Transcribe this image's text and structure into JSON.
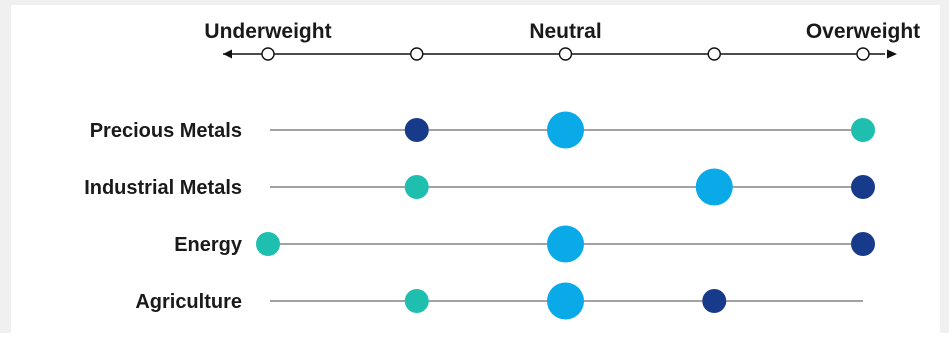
{
  "chart_data": {
    "type": "scatter",
    "title": "",
    "x_levels": [
      -2,
      -1,
      0,
      1,
      2
    ],
    "xlim": [
      -2,
      2
    ],
    "x_tick_labels": [
      {
        "x": -2,
        "label": "Underweight"
      },
      {
        "x": 0,
        "label": "Neutral"
      },
      {
        "x": 2,
        "label": "Overweight"
      }
    ],
    "categories": [
      "Precious Metals",
      "Industrial Metals",
      "Energy",
      "Agriculture"
    ],
    "rows": [
      {
        "label": "Precious Metals",
        "points": [
          {
            "x": -1,
            "kind": "dark"
          },
          {
            "x": 0,
            "kind": "large"
          },
          {
            "x": 2,
            "kind": "teal"
          }
        ]
      },
      {
        "label": "Industrial Metals",
        "points": [
          {
            "x": -1,
            "kind": "teal"
          },
          {
            "x": 1,
            "kind": "large"
          },
          {
            "x": 2,
            "kind": "dark"
          }
        ]
      },
      {
        "label": "Energy",
        "points": [
          {
            "x": -2,
            "kind": "teal"
          },
          {
            "x": 0,
            "kind": "large"
          },
          {
            "x": 2,
            "kind": "dark"
          }
        ]
      },
      {
        "label": "Agriculture",
        "points": [
          {
            "x": -1,
            "kind": "teal"
          },
          {
            "x": 0,
            "kind": "large"
          },
          {
            "x": 1,
            "kind": "dark"
          }
        ]
      }
    ],
    "colors": {
      "dark": "#173a8a",
      "teal": "#1fbfb0",
      "large": "#0aa9e8",
      "line": "#444444",
      "axis": "#111111"
    },
    "grid": false,
    "legend": "none"
  }
}
